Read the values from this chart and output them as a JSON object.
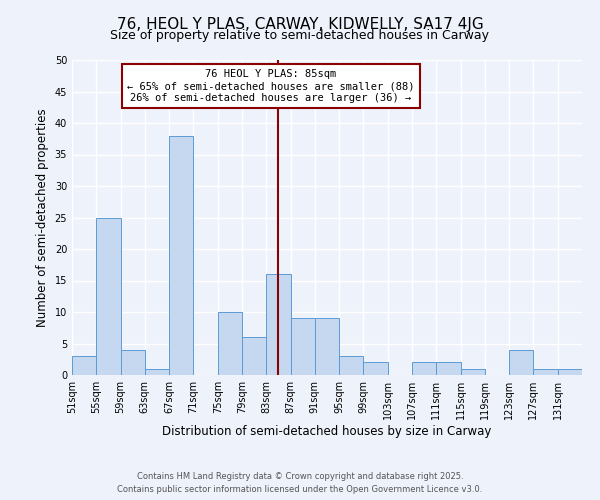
{
  "title": "76, HEOL Y PLAS, CARWAY, KIDWELLY, SA17 4JG",
  "subtitle": "Size of property relative to semi-detached houses in Carway",
  "xlabel": "Distribution of semi-detached houses by size in Carway",
  "ylabel": "Number of semi-detached properties",
  "bin_labels": [
    "51sqm",
    "55sqm",
    "59sqm",
    "63sqm",
    "67sqm",
    "71sqm",
    "75sqm",
    "79sqm",
    "83sqm",
    "87sqm",
    "91sqm",
    "95sqm",
    "99sqm",
    "103sqm",
    "107sqm",
    "111sqm",
    "115sqm",
    "119sqm",
    "123sqm",
    "127sqm",
    "131sqm"
  ],
  "bin_edges": [
    51,
    55,
    59,
    63,
    67,
    71,
    75,
    79,
    83,
    87,
    91,
    95,
    99,
    103,
    107,
    111,
    115,
    119,
    123,
    127,
    131,
    135
  ],
  "bar_values": [
    3,
    25,
    4,
    1,
    38,
    0,
    10,
    6,
    16,
    9,
    9,
    3,
    2,
    0,
    2,
    2,
    1,
    0,
    4,
    1,
    1
  ],
  "bar_color": "#c5d8f0",
  "bar_edge_color": "#5b9bd5",
  "property_value": 85,
  "vline_color": "#8b0000",
  "annotation_title": "76 HEOL Y PLAS: 85sqm",
  "annotation_line1": "← 65% of semi-detached houses are smaller (88)",
  "annotation_line2": "26% of semi-detached houses are larger (36) →",
  "annotation_box_color": "#8b0000",
  "ylim": [
    0,
    50
  ],
  "yticks": [
    0,
    5,
    10,
    15,
    20,
    25,
    30,
    35,
    40,
    45,
    50
  ],
  "background_color": "#eef2fb",
  "grid_color": "#ffffff",
  "footer_line1": "Contains HM Land Registry data © Crown copyright and database right 2025.",
  "footer_line2": "Contains public sector information licensed under the Open Government Licence v3.0.",
  "title_fontsize": 11,
  "subtitle_fontsize": 9,
  "axis_label_fontsize": 8.5,
  "tick_fontsize": 7,
  "footer_fontsize": 6,
  "annotation_fontsize": 7.5
}
